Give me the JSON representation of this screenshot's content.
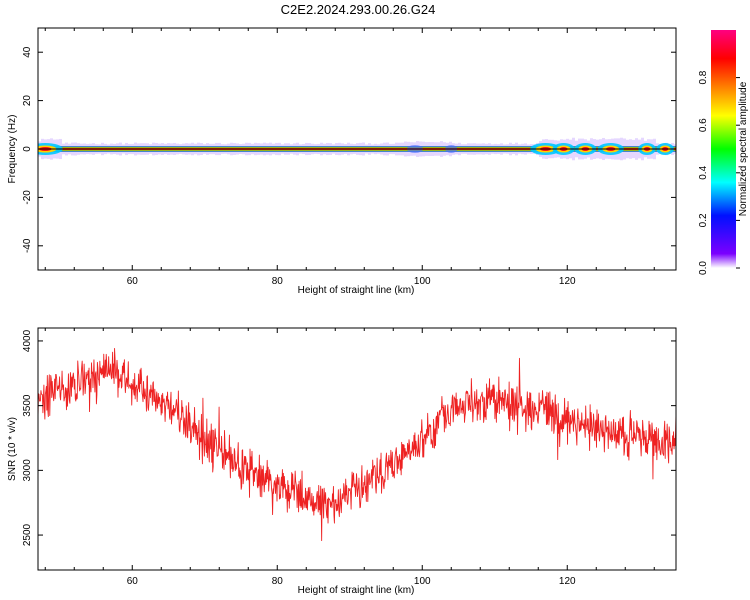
{
  "title": "C2E2.2024.293.00.26.G24",
  "chart_data": [
    {
      "type": "heatmap",
      "xlabel": "Height of straight line (km)",
      "ylabel": "Frequency (Hz)",
      "xlim": [
        47,
        135
      ],
      "ylim": [
        -50,
        50
      ],
      "xticks": [
        "60",
        "80",
        "100",
        "120"
      ],
      "yticks": [
        "-40",
        "-20",
        "0",
        "20",
        "40"
      ],
      "ridge_frequency_hz": 0,
      "colorbar": {
        "label": "Normalized spectral amplitude",
        "range": [
          0,
          1
        ],
        "ticks": [
          "0.0",
          "0.2",
          "0.4",
          "0.6",
          "0.8"
        ],
        "colors": [
          "#ffffff",
          "#7b00ff",
          "#0010ff",
          "#00ffff",
          "#00ff00",
          "#ffff00",
          "#ff8000",
          "#ff0000",
          "#ff0080"
        ]
      }
    },
    {
      "type": "line",
      "xlabel": "Height of straight line (km)",
      "ylabel": "SNR (10 * v/v)",
      "xlim": [
        47,
        135
      ],
      "ylim": [
        2230,
        4100
      ],
      "xticks": [
        "60",
        "80",
        "100",
        "120"
      ],
      "yticks": [
        "2500",
        "3000",
        "3500",
        "4000"
      ],
      "line_color": "#ee2222",
      "trend_x": [
        47,
        50,
        53,
        57,
        61,
        66,
        70,
        75,
        80,
        85,
        88,
        92,
        96,
        100,
        103,
        106,
        110,
        114,
        118,
        122,
        126,
        130,
        135
      ],
      "trend_y": [
        3540,
        3620,
        3690,
        3760,
        3640,
        3450,
        3230,
        3040,
        2880,
        2780,
        2760,
        2870,
        3060,
        3230,
        3430,
        3520,
        3540,
        3480,
        3420,
        3360,
        3300,
        3250,
        3210
      ],
      "noise_amplitude": 180
    }
  ]
}
